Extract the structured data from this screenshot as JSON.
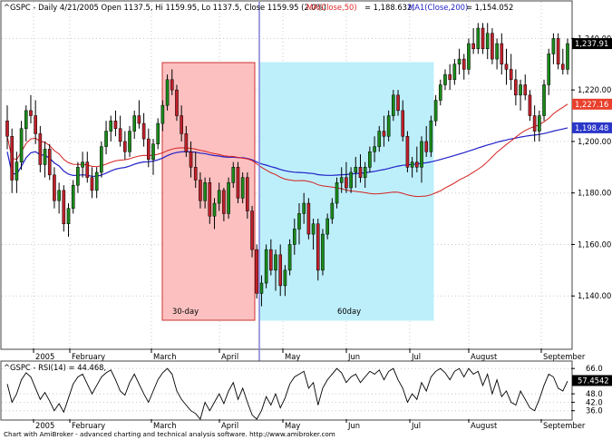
{
  "header": {
    "symbol_line": "^GSPC - Daily 4/21/2005 Open 1137.5, Hi 1159.95, Lo 1137.5, Close 1159.95 (2.0%)",
    "ma50_label": "MA(Close,50)",
    "ma50_value": " = 1,188.632,",
    "ma200_label": "MA1(Close,200)",
    "ma200_value": " = 1,154.052"
  },
  "price_axis": {
    "ticks": [
      "1,240.00",
      "1,220.00",
      "1,200.00",
      "1,180.00",
      "1,160.00",
      "1,140.00"
    ],
    "markers": [
      {
        "text": "1,237.91",
        "color": "#000000"
      },
      {
        "text": "1,227.16",
        "color": "#e8402c"
      },
      {
        "text": "1,198.48",
        "color": "#2a36c8"
      }
    ]
  },
  "months": [
    "2005",
    "February",
    "March",
    "April",
    "May",
    "Jun",
    "Jul",
    "August",
    "September"
  ],
  "regions": [
    {
      "label": "30-day",
      "color": "#fcc0c0",
      "border": "#cc3333"
    },
    {
      "label": "60day",
      "color": "#bdeffb",
      "border": "#bdeffb"
    }
  ],
  "rsi": {
    "title": "^GSPC - RSI(14) = 44.468,",
    "ticks": [
      "66.0",
      "48.0",
      "42.0",
      "36.0"
    ],
    "marker": "57.4542"
  },
  "footer": "Chart with AmiBroker - advanced charting and technical analysis software. http://www.amibroker.com",
  "colors": {
    "up": "#1a8a1a",
    "down": "#c0202a",
    "ma50": "#d42020",
    "ma200": "#2020c8",
    "cursor": "#7070d0"
  },
  "chart_data": [
    {
      "type": "candlestick",
      "title": "^GSPC - Daily",
      "ylim": [
        1120,
        1250
      ],
      "ohlc": [
        [
          1208,
          1214,
          1197,
          1202
        ],
        [
          1202,
          1205,
          1180,
          1185
        ],
        [
          1185,
          1196,
          1180,
          1192
        ],
        [
          1192,
          1208,
          1189,
          1205
        ],
        [
          1205,
          1214,
          1200,
          1212
        ],
        [
          1212,
          1218,
          1207,
          1210
        ],
        [
          1210,
          1216,
          1199,
          1203
        ],
        [
          1203,
          1206,
          1188,
          1191
        ],
        [
          1191,
          1200,
          1186,
          1197
        ],
        [
          1197,
          1199,
          1185,
          1187
        ],
        [
          1187,
          1190,
          1174,
          1177
        ],
        [
          1177,
          1184,
          1172,
          1181
        ],
        [
          1181,
          1183,
          1165,
          1168
        ],
        [
          1168,
          1176,
          1163,
          1174
        ],
        [
          1174,
          1185,
          1172,
          1183
        ],
        [
          1183,
          1192,
          1180,
          1190
        ],
        [
          1190,
          1196,
          1186,
          1192
        ],
        [
          1192,
          1196,
          1184,
          1186
        ],
        [
          1186,
          1190,
          1178,
          1181
        ],
        [
          1181,
          1190,
          1178,
          1188
        ],
        [
          1188,
          1200,
          1186,
          1198
        ],
        [
          1198,
          1208,
          1195,
          1204
        ],
        [
          1204,
          1210,
          1200,
          1208
        ],
        [
          1208,
          1212,
          1202,
          1205
        ],
        [
          1205,
          1210,
          1198,
          1200
        ],
        [
          1200,
          1204,
          1193,
          1196
        ],
        [
          1196,
          1206,
          1194,
          1204
        ],
        [
          1204,
          1212,
          1201,
          1210
        ],
        [
          1210,
          1216,
          1205,
          1207
        ],
        [
          1207,
          1211,
          1198,
          1201
        ],
        [
          1201,
          1205,
          1190,
          1193
        ],
        [
          1193,
          1201,
          1187,
          1199
        ],
        [
          1199,
          1209,
          1197,
          1207
        ],
        [
          1207,
          1216,
          1204,
          1214
        ],
        [
          1214,
          1226,
          1212,
          1224
        ],
        [
          1224,
          1228,
          1218,
          1220
        ],
        [
          1220,
          1222,
          1208,
          1210
        ],
        [
          1210,
          1214,
          1200,
          1203
        ],
        [
          1203,
          1206,
          1194,
          1196
        ],
        [
          1196,
          1200,
          1186,
          1190
        ],
        [
          1190,
          1196,
          1182,
          1185
        ],
        [
          1185,
          1188,
          1174,
          1177
        ],
        [
          1177,
          1186,
          1174,
          1184
        ],
        [
          1184,
          1186,
          1168,
          1171
        ],
        [
          1171,
          1178,
          1166,
          1176
        ],
        [
          1176,
          1184,
          1173,
          1181
        ],
        [
          1181,
          1182,
          1169,
          1172
        ],
        [
          1172,
          1186,
          1170,
          1184
        ],
        [
          1184,
          1192,
          1182,
          1190
        ],
        [
          1190,
          1192,
          1176,
          1178
        ],
        [
          1178,
          1188,
          1176,
          1186
        ],
        [
          1186,
          1188,
          1170,
          1173
        ],
        [
          1173,
          1175,
          1155,
          1158
        ],
        [
          1158,
          1160,
          1139,
          1141
        ],
        [
          1141,
          1148,
          1136,
          1145
        ],
        [
          1145,
          1160,
          1143,
          1158
        ],
        [
          1158,
          1162,
          1148,
          1150
        ],
        [
          1150,
          1158,
          1142,
          1156
        ],
        [
          1156,
          1160,
          1140,
          1144
        ],
        [
          1144,
          1152,
          1140,
          1150
        ],
        [
          1150,
          1162,
          1148,
          1160
        ],
        [
          1160,
          1170,
          1156,
          1166
        ],
        [
          1166,
          1176,
          1160,
          1172
        ],
        [
          1172,
          1180,
          1168,
          1176
        ],
        [
          1176,
          1178,
          1162,
          1164
        ],
        [
          1164,
          1170,
          1158,
          1168
        ],
        [
          1168,
          1170,
          1146,
          1150
        ],
        [
          1150,
          1166,
          1148,
          1164
        ],
        [
          1164,
          1172,
          1162,
          1170
        ],
        [
          1170,
          1178,
          1168,
          1176
        ],
        [
          1176,
          1186,
          1174,
          1184
        ],
        [
          1184,
          1190,
          1180,
          1186
        ],
        [
          1186,
          1192,
          1180,
          1182
        ],
        [
          1182,
          1190,
          1180,
          1188
        ],
        [
          1188,
          1194,
          1182,
          1190
        ],
        [
          1190,
          1195,
          1184,
          1186
        ],
        [
          1186,
          1192,
          1182,
          1190
        ],
        [
          1190,
          1198,
          1188,
          1196
        ],
        [
          1196,
          1202,
          1192,
          1198
        ],
        [
          1198,
          1206,
          1196,
          1204
        ],
        [
          1204,
          1210,
          1198,
          1202
        ],
        [
          1202,
          1212,
          1200,
          1210
        ],
        [
          1210,
          1220,
          1208,
          1218
        ],
        [
          1218,
          1220,
          1210,
          1212
        ],
        [
          1212,
          1216,
          1200,
          1202
        ],
        [
          1202,
          1204,
          1188,
          1190
        ],
        [
          1190,
          1194,
          1186,
          1192
        ],
        [
          1192,
          1198,
          1188,
          1190
        ],
        [
          1190,
          1202,
          1184,
          1200
        ],
        [
          1200,
          1206,
          1194,
          1196
        ],
        [
          1196,
          1210,
          1194,
          1208
        ],
        [
          1208,
          1218,
          1206,
          1216
        ],
        [
          1216,
          1224,
          1214,
          1222
        ],
        [
          1222,
          1228,
          1220,
          1226
        ],
        [
          1226,
          1230,
          1220,
          1224
        ],
        [
          1224,
          1232,
          1222,
          1230
        ],
        [
          1230,
          1236,
          1226,
          1232
        ],
        [
          1232,
          1234,
          1224,
          1228
        ],
        [
          1228,
          1240,
          1226,
          1238
        ],
        [
          1238,
          1244,
          1234,
          1236
        ],
        [
          1236,
          1246,
          1234,
          1244
        ],
        [
          1244,
          1246,
          1234,
          1236
        ],
        [
          1236,
          1246,
          1232,
          1242
        ],
        [
          1242,
          1244,
          1230,
          1232
        ],
        [
          1232,
          1240,
          1228,
          1238
        ],
        [
          1238,
          1242,
          1226,
          1230
        ],
        [
          1230,
          1236,
          1222,
          1228
        ],
        [
          1228,
          1234,
          1220,
          1224
        ],
        [
          1224,
          1228,
          1214,
          1218
        ],
        [
          1218,
          1224,
          1212,
          1222
        ],
        [
          1222,
          1226,
          1216,
          1218
        ],
        [
          1218,
          1220,
          1208,
          1210
        ],
        [
          1210,
          1214,
          1200,
          1204
        ],
        [
          1204,
          1212,
          1200,
          1210
        ],
        [
          1210,
          1224,
          1208,
          1222
        ],
        [
          1222,
          1236,
          1218,
          1234
        ],
        [
          1234,
          1242,
          1230,
          1240
        ],
        [
          1240,
          1242,
          1228,
          1230
        ],
        [
          1230,
          1236,
          1226,
          1228
        ],
        [
          1228,
          1240,
          1226,
          1238
        ]
      ]
    },
    {
      "type": "line",
      "title": "^GSPC - RSI(14)",
      "ylim": [
        30,
        70
      ],
      "values": [
        55,
        42,
        48,
        58,
        63,
        60,
        52,
        44,
        49,
        43,
        36,
        41,
        35,
        45,
        55,
        60,
        62,
        55,
        48,
        54,
        60,
        63,
        65,
        58,
        50,
        47,
        56,
        62,
        55,
        48,
        42,
        50,
        58,
        63,
        66,
        62,
        50,
        44,
        40,
        36,
        34,
        30,
        42,
        36,
        42,
        48,
        41,
        50,
        56,
        44,
        52,
        42,
        33,
        30,
        36,
        46,
        40,
        48,
        38,
        45,
        55,
        60,
        62,
        64,
        52,
        56,
        40,
        52,
        58,
        62,
        66,
        63,
        56,
        60,
        62,
        56,
        60,
        64,
        62,
        65,
        58,
        64,
        66,
        58,
        52,
        42,
        48,
        44,
        56,
        50,
        60,
        64,
        66,
        63,
        58,
        64,
        66,
        60,
        66,
        62,
        64,
        54,
        62,
        48,
        58,
        46,
        50,
        42,
        40,
        50,
        44,
        38,
        36,
        44,
        54,
        62,
        60,
        52,
        50,
        57
      ]
    }
  ]
}
